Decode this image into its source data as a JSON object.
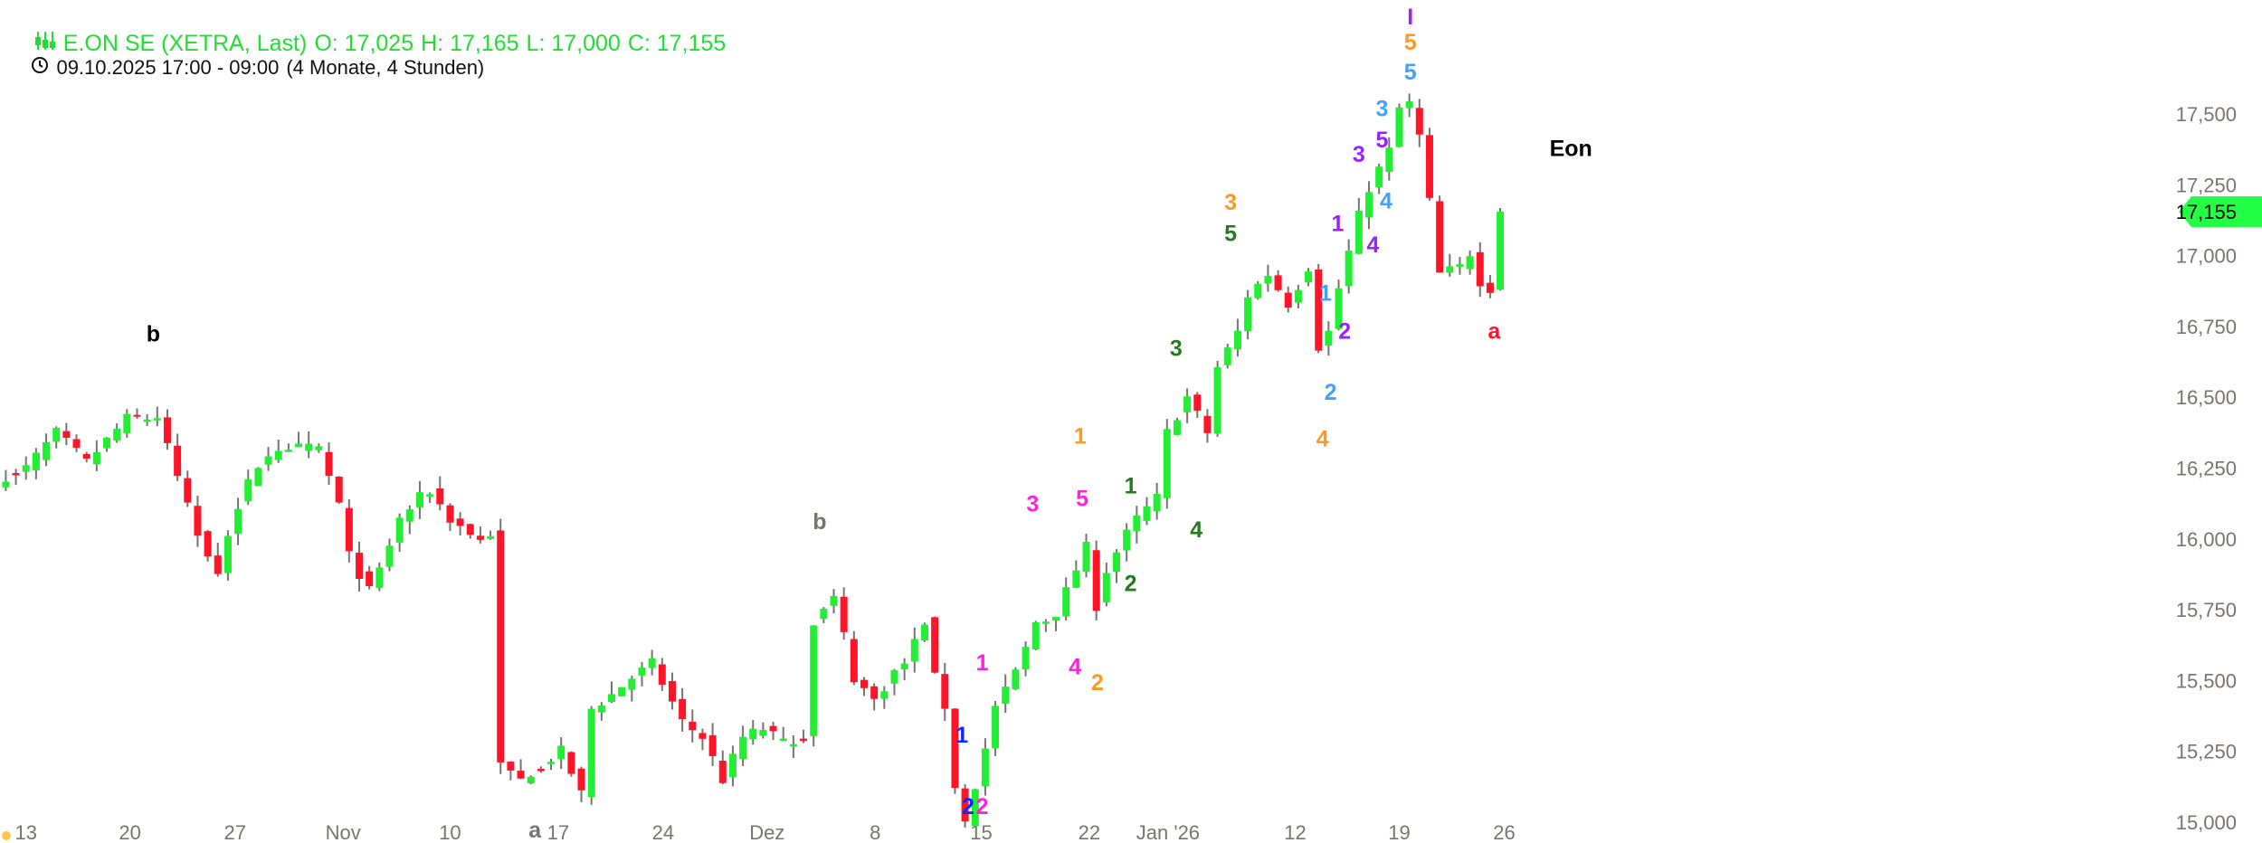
{
  "header": {
    "title": "E.ON SE (XETRA, Last)",
    "open": "O: 17,025",
    "high": "H: 17,165",
    "low": "L: 17,000",
    "close": "C: 17,155",
    "period": "09.10.2025 17:00 - 09:00",
    "range": "(4 Monate, 4 Stunden)",
    "icon": "candlestick-icon",
    "time_icon": "clock-icon"
  },
  "colors": {
    "up": "#22ee33",
    "down": "#ff1428",
    "wick": "#7a7370",
    "header": "#22dd33"
  },
  "chart_data": {
    "type": "candlestick",
    "title": "E.ON SE (XETRA, Last)",
    "interval": "4 Stunden",
    "ylim": [
      15000,
      17850
    ],
    "y_ticks": [
      "15,000",
      "15,250",
      "15,500",
      "15,750",
      "16,000",
      "16,250",
      "16,500",
      "16,750",
      "17,000",
      "17,250",
      "17,500"
    ],
    "y_tick_values": [
      15000,
      15250,
      15500,
      15750,
      16000,
      16250,
      16500,
      16750,
      17000,
      17250,
      17500
    ],
    "x_ticks": [
      {
        "label": "13",
        "bar": 2
      },
      {
        "label": "20",
        "bar": 12.3
      },
      {
        "label": "27",
        "bar": 22.7
      },
      {
        "label": "Nov",
        "bar": 33.4
      },
      {
        "label": "10",
        "bar": 44
      },
      {
        "label": "17",
        "bar": 54.7
      },
      {
        "label": "24",
        "bar": 65.1
      },
      {
        "label": "Dez",
        "bar": 75.4
      },
      {
        "label": "8",
        "bar": 86.1
      },
      {
        "label": "15",
        "bar": 96.6
      },
      {
        "label": "22",
        "bar": 107.3
      },
      {
        "label": "Jan '26",
        "bar": 115.1
      },
      {
        "label": "12",
        "bar": 127.7
      },
      {
        "label": "19",
        "bar": 138
      },
      {
        "label": "26",
        "bar": 148.4
      }
    ],
    "bar_count": 149,
    "close_path": [
      [
        0,
        16222
      ],
      [
        2,
        16250
      ],
      [
        5,
        16375
      ],
      [
        8,
        16270
      ],
      [
        12,
        16425
      ],
      [
        15,
        16425
      ],
      [
        17,
        16222
      ],
      [
        19,
        16018
      ],
      [
        21,
        15890
      ],
      [
        23,
        16120
      ],
      [
        25,
        16270
      ],
      [
        28,
        16320
      ],
      [
        31,
        16320
      ],
      [
        33,
        16120
      ],
      [
        34,
        15940
      ],
      [
        36,
        15815
      ],
      [
        37,
        15890
      ],
      [
        39,
        16070
      ],
      [
        41,
        16145
      ],
      [
        42,
        16170
      ],
      [
        44,
        16070
      ],
      [
        47,
        15995
      ],
      [
        48,
        16020
      ],
      [
        48.5,
        15740
      ],
      [
        49,
        15200
      ],
      [
        51,
        15150
      ],
      [
        53,
        15200
      ],
      [
        55,
        15250
      ],
      [
        57,
        15100
      ],
      [
        58,
        15400
      ],
      [
        60,
        15450
      ],
      [
        62,
        15510
      ],
      [
        64,
        15560
      ],
      [
        67,
        15355
      ],
      [
        69,
        15300
      ],
      [
        71,
        15150
      ],
      [
        73,
        15300
      ],
      [
        75,
        15330
      ],
      [
        77,
        15280
      ],
      [
        79,
        15300
      ],
      [
        80,
        15710
      ],
      [
        82,
        15790
      ],
      [
        83,
        15660
      ],
      [
        84,
        15510
      ],
      [
        86,
        15430
      ],
      [
        88,
        15530
      ],
      [
        89,
        15560
      ],
      [
        91,
        15710
      ],
      [
        92,
        15510
      ],
      [
        93,
        15410
      ],
      [
        94,
        15130
      ],
      [
        95,
        15000
      ],
      [
        97,
        15255
      ],
      [
        98,
        15410
      ],
      [
        99,
        15460
      ],
      [
        101,
        15610
      ],
      [
        102,
        15710
      ],
      [
        104,
        15740
      ],
      [
        105,
        15815
      ],
      [
        107,
        15970
      ],
      [
        108,
        15765
      ],
      [
        109,
        15890
      ],
      [
        111,
        16018
      ],
      [
        112,
        16070
      ],
      [
        114,
        16145
      ],
      [
        115,
        16375
      ],
      [
        117,
        16500
      ],
      [
        119,
        16375
      ],
      [
        120,
        16605
      ],
      [
        122,
        16730
      ],
      [
        123,
        16860
      ],
      [
        125,
        16935
      ],
      [
        127,
        16830
      ],
      [
        129,
        16960
      ],
      [
        130,
        16680
      ],
      [
        131,
        16730
      ],
      [
        132,
        16885
      ],
      [
        134,
        17140
      ],
      [
        135,
        17240
      ],
      [
        137,
        17370
      ],
      [
        138,
        17520
      ],
      [
        139,
        17535
      ],
      [
        140,
        17420
      ],
      [
        141,
        17190
      ],
      [
        142,
        16935
      ],
      [
        144,
        16960
      ],
      [
        145,
        17010
      ],
      [
        146,
        16910
      ],
      [
        147,
        16885
      ],
      [
        148,
        17155
      ]
    ],
    "last_price": "17,155",
    "annotations": [
      {
        "text": "b",
        "color": "#000000",
        "bar": 14.6,
        "price": 16726
      },
      {
        "text": "b",
        "color": "#7a7370",
        "bar": 80.6,
        "price": 16064
      },
      {
        "text": "a",
        "color": "#7a7370",
        "bar": 52.4,
        "price": 14954
      },
      {
        "text": "1",
        "color": "#ff9922",
        "bar": 106.4,
        "price": 16365
      },
      {
        "text": "3",
        "color": "#ff22dd",
        "bar": 101.7,
        "price": 16125
      },
      {
        "text": "5",
        "color": "#ff22dd",
        "bar": 106.6,
        "price": 16145
      },
      {
        "text": "1",
        "color": "#ff22dd",
        "bar": 96.7,
        "price": 15565
      },
      {
        "text": "4",
        "color": "#ff22dd",
        "bar": 105.9,
        "price": 15550
      },
      {
        "text": "2",
        "color": "#ff9922",
        "bar": 108.1,
        "price": 15495
      },
      {
        "text": "1",
        "color": "#0a2aff",
        "bar": 94.7,
        "price": 15310
      },
      {
        "text": "2",
        "color": "#ff22dd",
        "bar": 96.7,
        "price": 15045
      },
      {
        "text": "2",
        "color": "#0a2aff",
        "bar": 95.3,
        "price": 14970
      },
      {
        "text": "1",
        "color": "#237a23",
        "bar": 111.4,
        "price": 16190
      },
      {
        "text": "2",
        "color": "#237a23",
        "bar": 111.4,
        "price": 15845
      },
      {
        "text": "4",
        "color": "#237a23",
        "bar": 117.9,
        "price": 16035
      },
      {
        "text": "3",
        "color": "#237a23",
        "bar": 115.9,
        "price": 16675
      },
      {
        "text": "3",
        "color": "#ff9922",
        "bar": 121.3,
        "price": 17190
      },
      {
        "text": "5",
        "color": "#237a23",
        "bar": 121.3,
        "price": 17080
      },
      {
        "text": "1",
        "color": "#9922ff",
        "bar": 131.9,
        "price": 17115
      },
      {
        "text": "1",
        "color": "#44a0ff",
        "bar": 130.7,
        "price": 16870
      },
      {
        "text": "2",
        "color": "#9922ff",
        "bar": 132.6,
        "price": 16735
      },
      {
        "text": "2",
        "color": "#44a0ff",
        "bar": 131.2,
        "price": 16520
      },
      {
        "text": "4",
        "color": "#ff9922",
        "bar": 130.4,
        "price": 16355
      },
      {
        "text": "4",
        "color": "#9922ff",
        "bar": 135.4,
        "price": 17040
      },
      {
        "text": "3",
        "color": "#9922ff",
        "bar": 134,
        "price": 17360
      },
      {
        "text": "5",
        "color": "#9922ff",
        "bar": 136.3,
        "price": 17410
      },
      {
        "text": "4",
        "color": "#44a0ff",
        "bar": 136.7,
        "price": 17195
      },
      {
        "text": "3",
        "color": "#44a0ff",
        "bar": 136.3,
        "price": 17520
      },
      {
        "text": "5",
        "color": "#44a0ff",
        "bar": 139.1,
        "price": 17650
      },
      {
        "text": "5",
        "color": "#ff9922",
        "bar": 139.1,
        "price": 17755
      },
      {
        "text": "I",
        "color": "#9922ff",
        "bar": 139.1,
        "price": 17845
      },
      {
        "text": "a",
        "color": "#ff1428",
        "bar": 147.4,
        "price": 16735
      },
      {
        "text": "Eon",
        "color": "#000000",
        "bar": 155,
        "price": 17380
      }
    ]
  }
}
